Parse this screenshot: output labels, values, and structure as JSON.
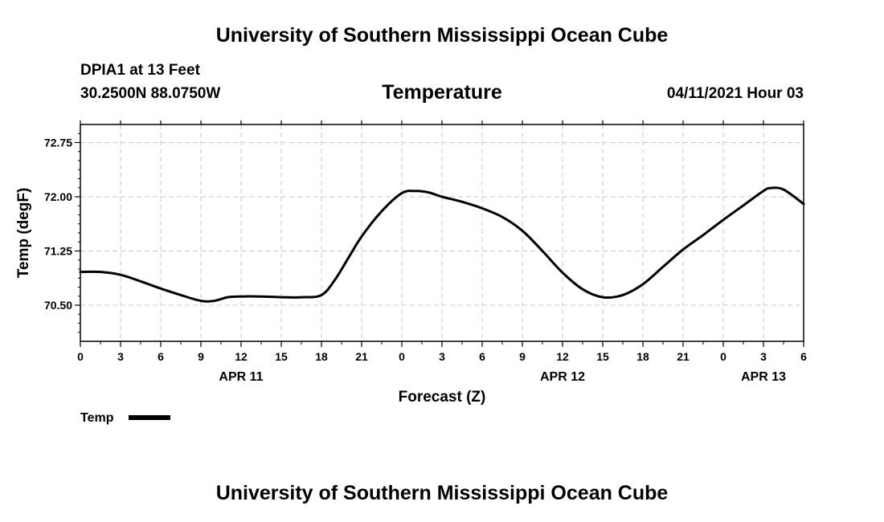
{
  "header": {
    "title_top": "University of Southern Mississippi Ocean Cube",
    "station": "DPIA1 at 13 Feet",
    "coords": "30.2500N  88.0750W",
    "chart_title": "Temperature",
    "datetime": "04/11/2021 Hour 03",
    "title_bottom": "University of Southern Mississippi Ocean Cube"
  },
  "colors": {
    "line": "#000000",
    "grid": "#c8c8c8",
    "axis": "#000000"
  },
  "chart_data": {
    "type": "line",
    "title": "Temperature",
    "xlabel": "Forecast (Z)",
    "ylabel": "Temp (degF)",
    "ylim": [
      70.0,
      73.0
    ],
    "yticks": [
      70.5,
      71.25,
      72.0,
      72.75
    ],
    "ytick_labels": [
      "70.50",
      "71.25",
      "72.00",
      "72.75"
    ],
    "xlim": [
      0,
      54
    ],
    "xticks": [
      0,
      3,
      6,
      9,
      12,
      15,
      18,
      21,
      24,
      27,
      30,
      33,
      36,
      39,
      42,
      45,
      48,
      51,
      54
    ],
    "xtick_labels": [
      "0",
      "3",
      "6",
      "9",
      "12",
      "15",
      "18",
      "21",
      "0",
      "3",
      "6",
      "9",
      "12",
      "15",
      "18",
      "21",
      "0",
      "3",
      "6"
    ],
    "date_labels": [
      {
        "x": 12,
        "label": "APR 11"
      },
      {
        "x": 36,
        "label": "APR 12"
      },
      {
        "x": 51,
        "label": "APR 13"
      }
    ],
    "grid": true,
    "legend_position": "bottom-left",
    "series": [
      {
        "name": "Temp",
        "x": [
          0,
          1.5,
          3,
          4.5,
          6,
          7.5,
          9,
          10,
          11,
          12,
          13.5,
          15,
          16.5,
          18,
          19,
          20,
          21,
          22.5,
          24,
          25,
          26,
          27,
          28.5,
          30,
          31.5,
          33,
          34.5,
          36,
          37.5,
          39,
          40.5,
          42,
          43.5,
          45,
          46.5,
          48,
          49.5,
          51,
          51.5,
          52.5,
          54
        ],
        "y": [
          70.96,
          70.96,
          70.92,
          70.83,
          70.73,
          70.64,
          70.56,
          70.56,
          70.61,
          70.62,
          70.62,
          70.61,
          70.61,
          70.64,
          70.85,
          71.15,
          71.45,
          71.8,
          72.05,
          72.08,
          72.06,
          72.0,
          71.93,
          71.84,
          71.72,
          71.53,
          71.25,
          70.95,
          70.72,
          70.61,
          70.64,
          70.79,
          71.03,
          71.27,
          71.47,
          71.68,
          71.88,
          72.08,
          72.12,
          72.1,
          71.9
        ]
      }
    ]
  }
}
